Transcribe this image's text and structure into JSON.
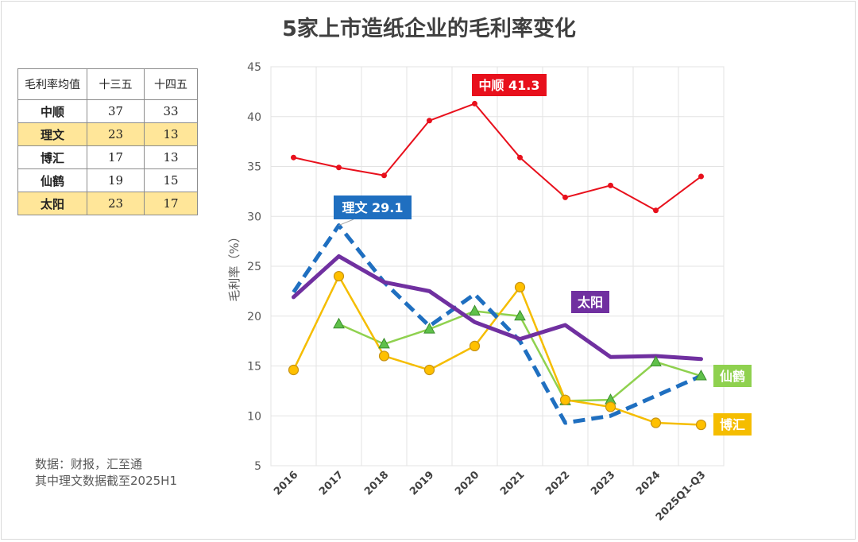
{
  "title": "5家上市造纸企业的毛利率变化",
  "avg_table": {
    "headers": [
      "毛利率均值",
      "十三五",
      "十四五"
    ],
    "rows": [
      {
        "name": "中顺",
        "v13": "37",
        "v14": "33",
        "highlight": false
      },
      {
        "name": "理文",
        "v13": "23",
        "v14": "13",
        "highlight": true
      },
      {
        "name": "博汇",
        "v13": "17",
        "v14": "13",
        "highlight": false
      },
      {
        "name": "仙鹤",
        "v13": "19",
        "v14": "15",
        "highlight": false
      },
      {
        "name": "太阳",
        "v13": "23",
        "v14": "17",
        "highlight": true
      }
    ]
  },
  "source": {
    "line1": "数据：财报，汇至通",
    "line2": "其中理文数据截至2025H1"
  },
  "colors": {
    "zhongshun": "#e8101c",
    "liwen": "#1f6fc0",
    "bohui": "#f5bd00",
    "xianhe": "#8fd14f",
    "taiyang": "#7030a0"
  },
  "chart_data": {
    "type": "line",
    "ylabel": "毛利率（%）",
    "xlabel": "",
    "ylim": [
      5,
      45
    ],
    "yticks": [
      5,
      10,
      15,
      20,
      25,
      30,
      35,
      40,
      45
    ],
    "categories": [
      "2016",
      "2017",
      "2018",
      "2019",
      "2020",
      "2021",
      "2022",
      "2023",
      "2024",
      "2025Q1-Q3"
    ],
    "grid": true,
    "series": [
      {
        "key": "zhongshun",
        "name": "中顺",
        "values": [
          35.9,
          34.9,
          34.1,
          39.6,
          41.3,
          35.9,
          31.9,
          33.1,
          30.6,
          34.0
        ]
      },
      {
        "key": "liwen",
        "name": "理文",
        "values": [
          22.4,
          29.1,
          23.4,
          19.0,
          22.2,
          17.5,
          9.3,
          10.0,
          12.0,
          14.0
        ]
      },
      {
        "key": "bohui",
        "name": "博汇",
        "values": [
          14.6,
          24.0,
          16.0,
          14.6,
          17.0,
          22.9,
          11.6,
          10.9,
          9.3,
          9.1
        ]
      },
      {
        "key": "xianhe",
        "name": "仙鹤",
        "values": [
          null,
          19.2,
          17.2,
          18.7,
          20.5,
          20.0,
          11.5,
          11.6,
          15.4,
          14.0
        ]
      },
      {
        "key": "taiyang",
        "name": "太阳",
        "values": [
          21.9,
          26.0,
          23.4,
          22.5,
          19.4,
          17.7,
          19.1,
          15.9,
          16.0,
          15.7
        ]
      }
    ],
    "annotations": {
      "zhongshun": "中顺  41.3",
      "liwen": "理文  29.1",
      "taiyang": "太阳",
      "xianhe": "仙鹤",
      "bohui": "博汇"
    }
  }
}
